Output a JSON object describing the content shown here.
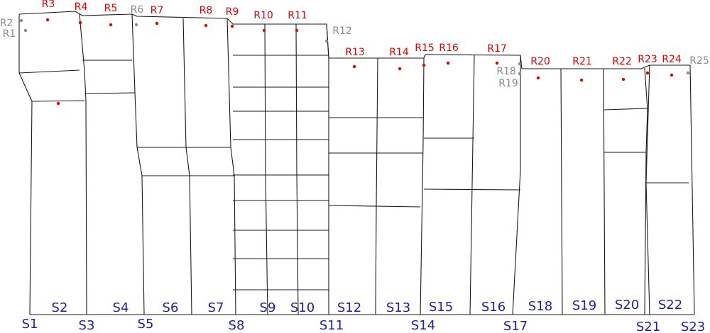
{
  "colors": {
    "line": "#1a1a1a",
    "red": "#e60000",
    "gray": "#8a8a8a",
    "blue": "#1f1fa8"
  },
  "red_labels": [
    "R3",
    "R4",
    "R5",
    "R7",
    "R8",
    "R9",
    "R10",
    "R11",
    "R13",
    "R14",
    "R15",
    "R16",
    "R17",
    "R20",
    "R21",
    "R22",
    "R23",
    "R24"
  ],
  "gray_labels": [
    "R1",
    "R2",
    "R6",
    "R12",
    "R18",
    "R19",
    "R25"
  ],
  "segment_labels": [
    "S1",
    "S2",
    "S3",
    "S4",
    "S5",
    "S6",
    "S7",
    "S8",
    "S9",
    "S10",
    "S11",
    "S12",
    "S13",
    "S14",
    "S15",
    "S16",
    "S17",
    "S18",
    "S19",
    "S20",
    "S21",
    "S22",
    "S23"
  ]
}
